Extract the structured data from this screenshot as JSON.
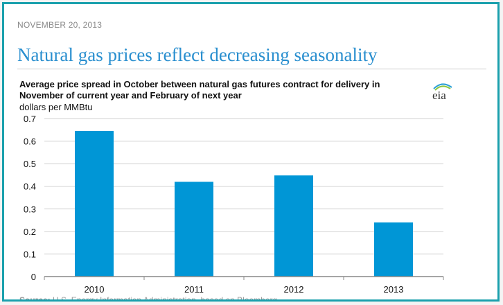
{
  "article": {
    "date": "NOVEMBER 20, 2013",
    "headline": "Natural gas prices reflect decreasing seasonality",
    "source_label": "Source:",
    "source_text": " U.S. Energy Information Administration, based on Bloomberg"
  },
  "logo": {
    "text": "eia"
  },
  "colors": {
    "bar": "#0096d6",
    "border": "#1aa0ad",
    "headline": "#2a8fcf"
  },
  "chart_data": {
    "type": "bar",
    "title": "Average price spread in October between natural gas futures contract for delivery in November of current year and February of next year",
    "ylabel": "dollars per MMBtu",
    "xlabel": "",
    "categories": [
      "2010",
      "2011",
      "2012",
      "2013"
    ],
    "values": [
      0.645,
      0.42,
      0.448,
      0.24
    ],
    "ylim": [
      0,
      0.7
    ],
    "yticks": [
      "0",
      "0.1",
      "0.2",
      "0.3",
      "0.4",
      "0.5",
      "0.6",
      "0.7"
    ],
    "grid": true,
    "legend": "none"
  }
}
